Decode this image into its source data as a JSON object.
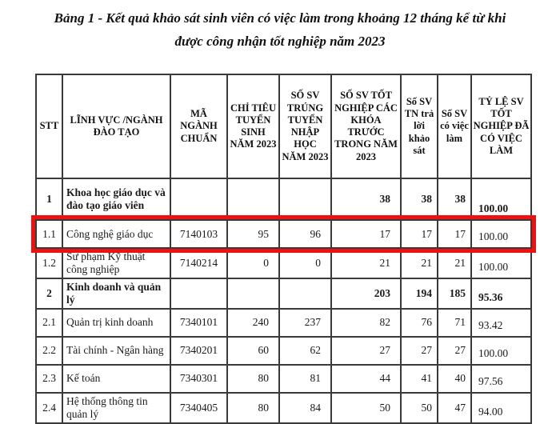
{
  "title": {
    "line1": "Bảng 1 - Kết quả khảo sát sinh viên có việc làm trong khoảng 12 tháng kể từ khi",
    "line2": "được công nhận tốt nghiệp năm 2023"
  },
  "table": {
    "border_color": "#3a3a3a",
    "highlight_color": "#ee1111",
    "columns": [
      {
        "key": "stt",
        "label": "STT"
      },
      {
        "key": "field",
        "label": "LĨNH VỰC /NGÀNH ĐÀO TẠO"
      },
      {
        "key": "code",
        "label": "MÃ NGÀNH CHUẨN"
      },
      {
        "key": "quota",
        "label": "CHỈ TIÊU TUYỂN SINH NĂM 2023"
      },
      {
        "key": "admitted",
        "label": "SỐ SV TRÚNG TUYỂN NHẬP HỌC NĂM 2023"
      },
      {
        "key": "graduates",
        "label": "SỐ SV TỐT NGHIỆP CÁC KHÓA TRƯỚC TRONG NĂM 2023"
      },
      {
        "key": "surveyed",
        "label": "Số SV TN trả lời khảo sát"
      },
      {
        "key": "employed",
        "label": "Số SV có việc làm"
      },
      {
        "key": "rate",
        "label": "TỶ LỆ SV TỐT NGHIỆP ĐÃ CÓ VIỆC LÀM"
      }
    ],
    "rows": [
      {
        "stt": "1",
        "field": "Khoa học giáo dục và đào tạo giáo viên",
        "code": "",
        "quota": "",
        "admitted": "",
        "graduates": "38",
        "surveyed": "38",
        "employed": "38",
        "rate": "100.00",
        "bold": true,
        "highlight": false
      },
      {
        "stt": "1.1",
        "field": "Công nghệ giáo dục",
        "code": "7140103",
        "quota": "95",
        "admitted": "96",
        "graduates": "17",
        "surveyed": "17",
        "employed": "17",
        "rate": "100.00",
        "bold": false,
        "highlight": true
      },
      {
        "stt": "1.2",
        "field": "Sư phạm Kỹ thuật công nghiệp",
        "code": "7140214",
        "quota": "0",
        "admitted": "0",
        "graduates": "21",
        "surveyed": "21",
        "employed": "21",
        "rate": "100.00",
        "bold": false,
        "highlight": false
      },
      {
        "stt": "2",
        "field": "Kinh doanh và quản lý",
        "code": "",
        "quota": "",
        "admitted": "",
        "graduates": "203",
        "surveyed": "194",
        "employed": "185",
        "rate": "95.36",
        "bold": true,
        "highlight": false
      },
      {
        "stt": "2.1",
        "field": "Quản trị kinh doanh",
        "code": "7340101",
        "quota": "240",
        "admitted": "237",
        "graduates": "82",
        "surveyed": "76",
        "employed": "71",
        "rate": "93.42",
        "bold": false,
        "highlight": false
      },
      {
        "stt": "2.2",
        "field": "Tài chính - Ngân hàng",
        "code": "7340201",
        "quota": "60",
        "admitted": "62",
        "graduates": "27",
        "surveyed": "27",
        "employed": "27",
        "rate": "100.00",
        "bold": false,
        "highlight": false
      },
      {
        "stt": "2.3",
        "field": "Kế toán",
        "code": "7340301",
        "quota": "80",
        "admitted": "81",
        "graduates": "44",
        "surveyed": "41",
        "employed": "40",
        "rate": "97.56",
        "bold": false,
        "highlight": false
      },
      {
        "stt": "2.4",
        "field": "Hệ thống thông tin quản lý",
        "code": "7340405",
        "quota": "80",
        "admitted": "84",
        "graduates": "50",
        "surveyed": "50",
        "employed": "47",
        "rate": "94.00",
        "bold": false,
        "highlight": false
      }
    ]
  }
}
